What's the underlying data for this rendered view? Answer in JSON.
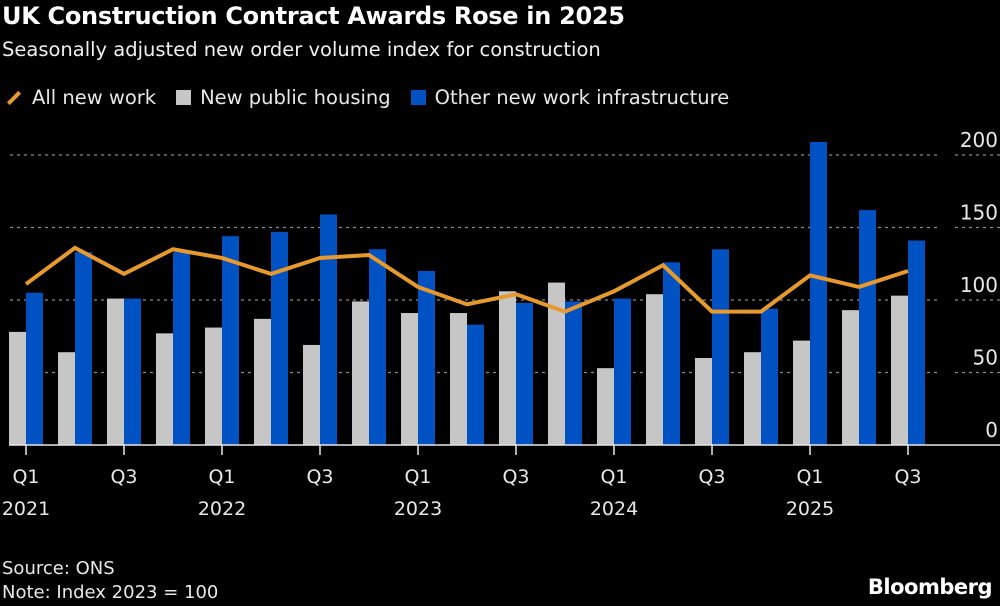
{
  "title": "UK Construction Contract Awards Rose in 2025",
  "subtitle": "Seasonally adjusted new order volume index for construction",
  "source": "Source: ONS",
  "note": "Note: Index 2023 = 100",
  "logo": "Bloomberg",
  "colors": {
    "line": "#e69a2e",
    "gray": "#c6c6c6",
    "blue": "#0051c2",
    "background": "#000000"
  },
  "chart_data": {
    "type": "bar+line",
    "categories": [
      "Q1 2021",
      "Q2 2021",
      "Q3 2021",
      "Q4 2021",
      "Q1 2022",
      "Q2 2022",
      "Q3 2022",
      "Q4 2022",
      "Q1 2023",
      "Q2 2023",
      "Q3 2023",
      "Q4 2023",
      "Q1 2024",
      "Q2 2024",
      "Q3 2024",
      "Q4 2024",
      "Q1 2025",
      "Q2 2025",
      "Q3 2025"
    ],
    "x_tick_labels": [
      {
        "q": "Q1",
        "y": "2021"
      },
      {
        "q": "Q3",
        "y": ""
      },
      {
        "q": "Q1",
        "y": "2022"
      },
      {
        "q": "Q3",
        "y": ""
      },
      {
        "q": "Q1",
        "y": "2023"
      },
      {
        "q": "Q3",
        "y": ""
      },
      {
        "q": "Q1",
        "y": "2024"
      },
      {
        "q": "Q3",
        "y": ""
      },
      {
        "q": "Q1",
        "y": "2025"
      },
      {
        "q": "Q3",
        "y": ""
      }
    ],
    "series": [
      {
        "name": "All new work",
        "kind": "line",
        "values": [
          111,
          136,
          118,
          135,
          129,
          118,
          129,
          131,
          109,
          97,
          104,
          92,
          106,
          124,
          92,
          92,
          117,
          109,
          120
        ]
      },
      {
        "name": "New public housing",
        "kind": "bar",
        "values": [
          78,
          64,
          101,
          77,
          81,
          87,
          69,
          99,
          91,
          91,
          106,
          112,
          53,
          104,
          60,
          64,
          72,
          93,
          103
        ]
      },
      {
        "name": "Other new work infrastructure",
        "kind": "bar",
        "values": [
          105,
          133,
          101,
          133,
          144,
          147,
          159,
          135,
          120,
          83,
          98,
          99,
          101,
          126,
          135,
          94,
          209,
          162,
          141
        ]
      }
    ],
    "y_ticks": [
      "0",
      "50",
      "100",
      "150",
      "200"
    ],
    "ylim": [
      0,
      200
    ],
    "y_axis_side": "right",
    "grid": true,
    "legend": "top-left"
  }
}
